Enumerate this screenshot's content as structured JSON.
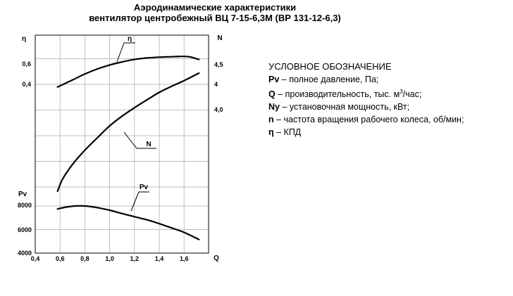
{
  "titles": {
    "line1": "Аэродинамические характеристики",
    "line2": "вентилятор центробежный ВЦ 7-15-6,3М (ВР 131-12-6,3)"
  },
  "legend": {
    "heading": "УСЛОВНОЕ ОБОЗНАЧЕНИЕ",
    "items": [
      {
        "symbol": "Pv",
        "sep": " – ",
        "text": "полное давление, Па;"
      },
      {
        "symbol": "Q",
        "sep": " – ",
        "text": "производительность, тыс. м",
        "sup": "3",
        "tail": "/час;"
      },
      {
        "symbol": "Ny",
        "sep": " – ",
        "text": "установочная мощность, кВт;"
      },
      {
        "symbol": "n",
        "sep": " – ",
        "text": "частота вращения рабочего колеса, об/мин;"
      },
      {
        "symbol": "η",
        "sep": " – ",
        "text": "КПД"
      }
    ]
  },
  "chart_data": {
    "type": "line",
    "x_axis": {
      "label": "Q",
      "ticks": [
        "0,4",
        "0,6",
        "0,8",
        "1,0",
        "1,2",
        "1,4",
        "1,6"
      ],
      "tick_values": [
        0.4,
        0.6,
        0.8,
        1.0,
        1.2,
        1.4,
        1.6
      ],
      "range": [
        0.4,
        1.8
      ]
    },
    "eta_axis": {
      "label": "η",
      "ticks": [
        "0,6",
        "0,4"
      ],
      "tick_values": [
        0.6,
        0.4
      ]
    },
    "n_axis": {
      "label": "N",
      "ticks": [
        "4,5",
        "4",
        "4,0"
      ]
    },
    "pv_axis": {
      "label": "Pv",
      "ticks": [
        "8000",
        "6000",
        "4000"
      ],
      "tick_values": [
        8000,
        6000,
        4000
      ],
      "range": [
        4000,
        9000
      ]
    },
    "grid": true,
    "series": [
      {
        "name": "η",
        "axis": "eta",
        "x": [
          0.58,
          0.7,
          0.8,
          0.9,
          1.0,
          1.1,
          1.2,
          1.3,
          1.4,
          1.5,
          1.6,
          1.65,
          1.72
        ],
        "y": [
          0.37,
          0.44,
          0.5,
          0.55,
          0.59,
          0.62,
          0.645,
          0.66,
          0.668,
          0.672,
          0.676,
          0.67,
          0.645
        ]
      },
      {
        "name": "N",
        "axis": "N",
        "x": [
          0.58,
          0.62,
          0.7,
          0.8,
          0.9,
          1.0,
          1.1,
          1.2,
          1.3,
          1.4,
          1.5,
          1.6,
          1.72
        ],
        "y": [
          1.0,
          1.43,
          1.96,
          2.47,
          2.91,
          3.34,
          3.69,
          3.99,
          4.27,
          4.54,
          4.76,
          4.96,
          5.23
        ]
      },
      {
        "name": "Pv",
        "axis": "pv",
        "x": [
          0.58,
          0.65,
          0.72,
          0.8,
          0.88,
          1.0,
          1.1,
          1.2,
          1.3,
          1.4,
          1.5,
          1.6,
          1.72
        ],
        "y": [
          7750,
          7910,
          8000,
          8000,
          7900,
          7640,
          7360,
          7090,
          6830,
          6500,
          6140,
          5760,
          5160
        ]
      }
    ],
    "annotations": [
      "η",
      "N",
      "Pv"
    ]
  }
}
